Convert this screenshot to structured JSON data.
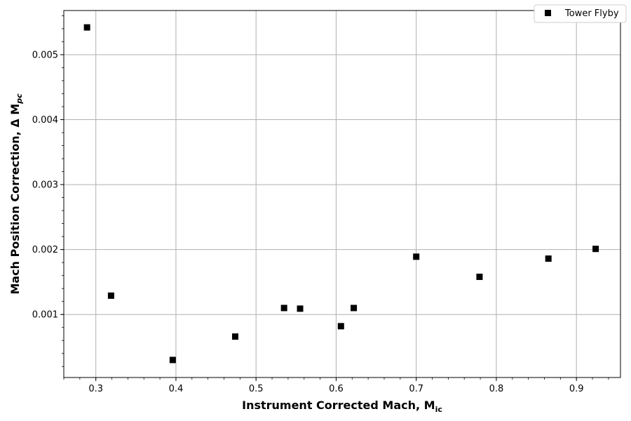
{
  "chart_data": {
    "type": "scatter",
    "xlabel": "Instrument Corrected Mach, M",
    "xlabel_sub": "ic",
    "ylabel": "Mach Position Correction, Δ M",
    "ylabel_sub": "pc",
    "xlim": [
      0.26,
      0.955
    ],
    "ylim": [
      3e-05,
      0.00568
    ],
    "x_ticks": [
      0.3,
      0.4,
      0.5,
      0.6,
      0.7,
      0.8,
      0.9
    ],
    "x_tick_labels": [
      "0.3",
      "0.4",
      "0.5",
      "0.6",
      "0.7",
      "0.8",
      "0.9"
    ],
    "y_ticks": [
      0.001,
      0.002,
      0.003,
      0.004,
      0.005
    ],
    "y_tick_labels": [
      "0.001",
      "0.002",
      "0.003",
      "0.004",
      "0.005"
    ],
    "x_minor_step": 0.02,
    "y_minor_step": 0.0002,
    "grid": true,
    "legend_position": "top-right",
    "series": [
      {
        "name": "Tower Flyby",
        "marker": "square",
        "color": "#000000",
        "x": [
          0.289,
          0.319,
          0.396,
          0.474,
          0.535,
          0.555,
          0.606,
          0.622,
          0.7,
          0.779,
          0.865,
          0.924
        ],
        "y": [
          0.00542,
          0.00129,
          0.0003,
          0.00066,
          0.0011,
          0.00109,
          0.00082,
          0.0011,
          0.00189,
          0.00158,
          0.00186,
          0.00201
        ]
      }
    ]
  }
}
